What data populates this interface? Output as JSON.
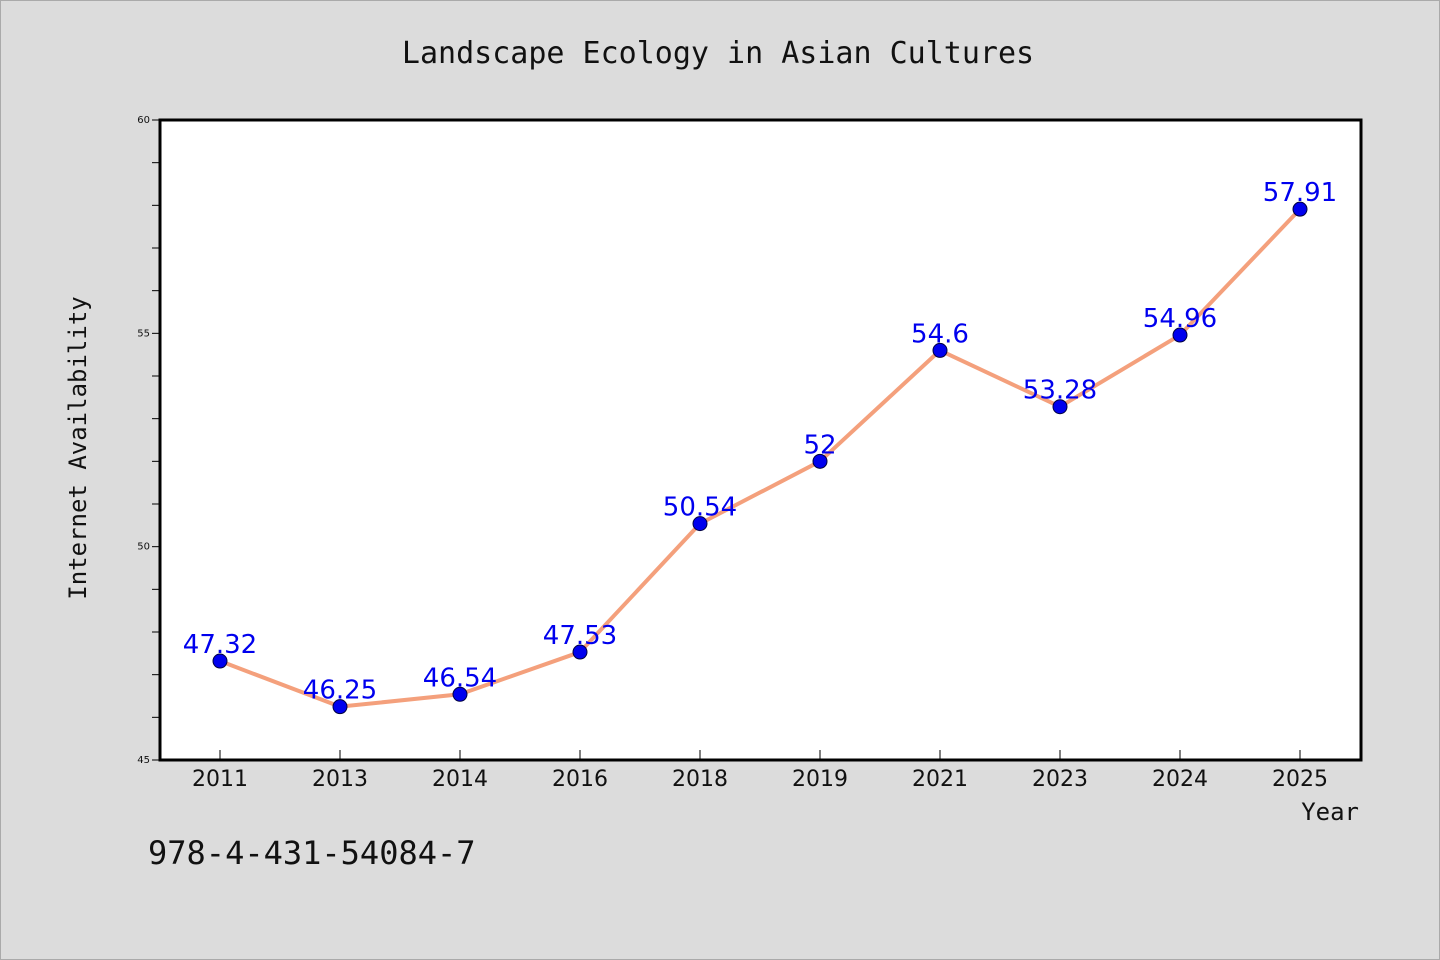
{
  "chart_data": {
    "type": "line",
    "title": "Landscape Ecology in Asian Cultures",
    "xlabel": "Year",
    "ylabel": "Internet Availability",
    "categories": [
      "2011",
      "2013",
      "2014",
      "2016",
      "2018",
      "2019",
      "2021",
      "2023",
      "2024",
      "2025"
    ],
    "series": [
      {
        "values": [
          47.32,
          46.25,
          46.54,
          47.53,
          50.54,
          52,
          54.6,
          53.28,
          54.96,
          57.91
        ],
        "data_labels": [
          "47.32",
          "46.25",
          "46.54",
          "47.53",
          "50.54",
          "52",
          "54.6",
          "53.28",
          "54.96",
          "57.91"
        ],
        "line_color": "#f4a07c",
        "marker_color": "#0000ee",
        "label_color": "#0000ee"
      }
    ],
    "ylim": [
      45,
      60
    ],
    "y_major_ticks": [
      "45",
      "50",
      "55",
      "60"
    ],
    "grid": false,
    "annotation": "978-4-431-54084-7"
  },
  "colors": {
    "background": "#dcdcdc",
    "plot_background": "#ffffff",
    "axis": "#000000"
  }
}
